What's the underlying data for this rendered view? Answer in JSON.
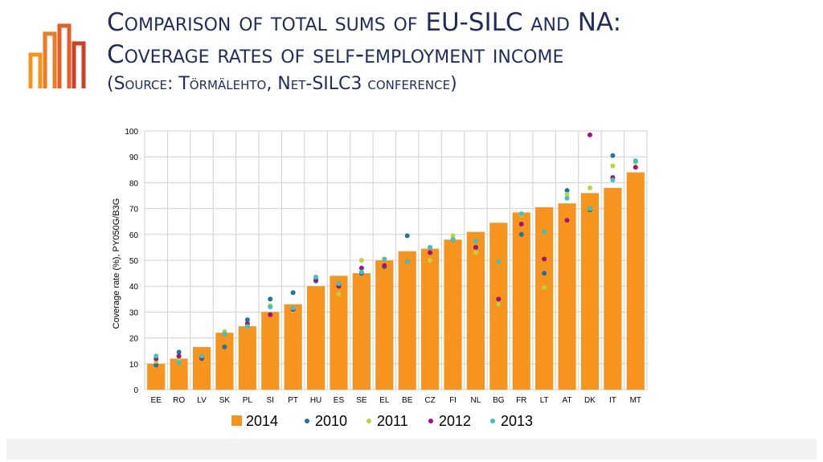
{
  "slide": {
    "title_line1": "Comparison of total sums of EU-SILC and NA:",
    "title_line2": "Coverage rates of     self-employment income",
    "title_line3": "(Source:   Törmälehto, Net-SILC3 conference)"
  },
  "colors": {
    "title": "#1f2d5c",
    "bar": "#f7941e",
    "s2010": "#1b75a8",
    "s2011": "#bcd33c",
    "s2012": "#a3117f",
    "s2013": "#3cc3c3",
    "logo": [
      "#f7941e",
      "#ee7a22",
      "#e25f26",
      "#cf3f27"
    ]
  },
  "chart_data": {
    "type": "bar",
    "ylabel": "Coverage rate (%), PY050G/B3G",
    "ylim": [
      0,
      100
    ],
    "yticks": [
      0,
      10,
      20,
      30,
      40,
      50,
      60,
      70,
      80,
      90,
      100
    ],
    "grid": true,
    "legend_position": "bottom",
    "categories": [
      "EE",
      "RO",
      "LV",
      "SK",
      "PL",
      "SI",
      "PT",
      "HU",
      "ES",
      "SE",
      "EL",
      "BE",
      "CZ",
      "FI",
      "NL",
      "BG",
      "FR",
      "LT",
      "AT",
      "DK",
      "IT",
      "MT"
    ],
    "bars": {
      "name": "2014",
      "values": [
        10,
        12,
        16.5,
        22,
        24.5,
        30,
        33,
        40,
        44,
        45,
        50,
        53.5,
        54.5,
        58,
        61,
        64.5,
        68.5,
        70.5,
        72,
        76,
        78,
        84
      ]
    },
    "points": [
      {
        "name": "2010",
        "values": [
          9.5,
          14.5,
          12,
          16.5,
          27,
          35,
          37.5,
          42,
          40.5,
          45,
          47.5,
          59.5,
          55,
          58,
          55,
          33,
          60,
          45,
          77,
          69.5,
          90.5,
          88
        ]
      },
      {
        "name": "2011",
        "values": [
          11,
          12,
          12.5,
          22.5,
          25,
          32.5,
          30.5,
          43.5,
          37,
          50,
          48,
          49.5,
          50,
          59.5,
          53,
          33,
          67.5,
          39.5,
          75.5,
          78,
          86.5,
          88
        ]
      },
      {
        "name": "2012",
        "values": [
          12,
          13,
          12.5,
          21.5,
          25.5,
          29,
          31,
          42.5,
          40,
          47,
          48,
          49.5,
          53,
          58,
          55,
          35,
          64,
          50.5,
          65.5,
          98.5,
          82,
          86
        ]
      },
      {
        "name": "2013",
        "values": [
          13,
          10.5,
          13,
          21.5,
          24.5,
          32,
          31.5,
          43.5,
          41,
          45.5,
          50.5,
          49.5,
          55,
          58,
          57.5,
          49.5,
          68,
          61,
          74,
          70,
          81,
          88.5
        ]
      }
    ]
  }
}
